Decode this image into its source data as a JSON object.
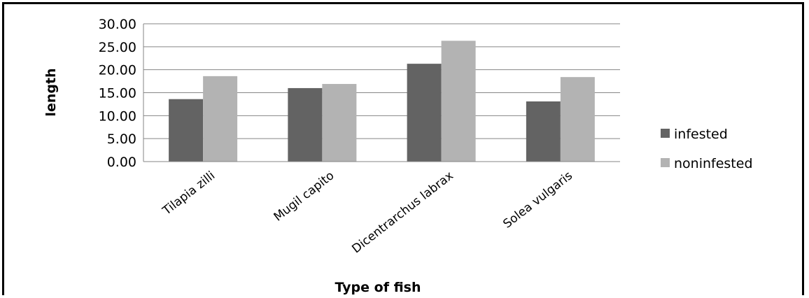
{
  "chart_data": {
    "type": "bar",
    "title": "",
    "xlabel": "Type of fish",
    "ylabel": "length",
    "categories": [
      "Tilapia zilli",
      "Mugil capito",
      "Dicentrarchus labrax",
      "Solea vulgaris"
    ],
    "series": [
      {
        "name": "infested",
        "color": "#636363",
        "values": [
          13.6,
          16.0,
          21.3,
          13.1
        ]
      },
      {
        "name": "noninfested",
        "color": "#b3b3b3",
        "values": [
          18.6,
          16.9,
          26.3,
          18.4
        ]
      }
    ],
    "ylim": [
      0,
      30
    ],
    "yticks": [
      "0.00",
      "5.00",
      "10.00",
      "15.00",
      "20.00",
      "25.00",
      "30.00"
    ],
    "grid": true,
    "legend": "right"
  }
}
